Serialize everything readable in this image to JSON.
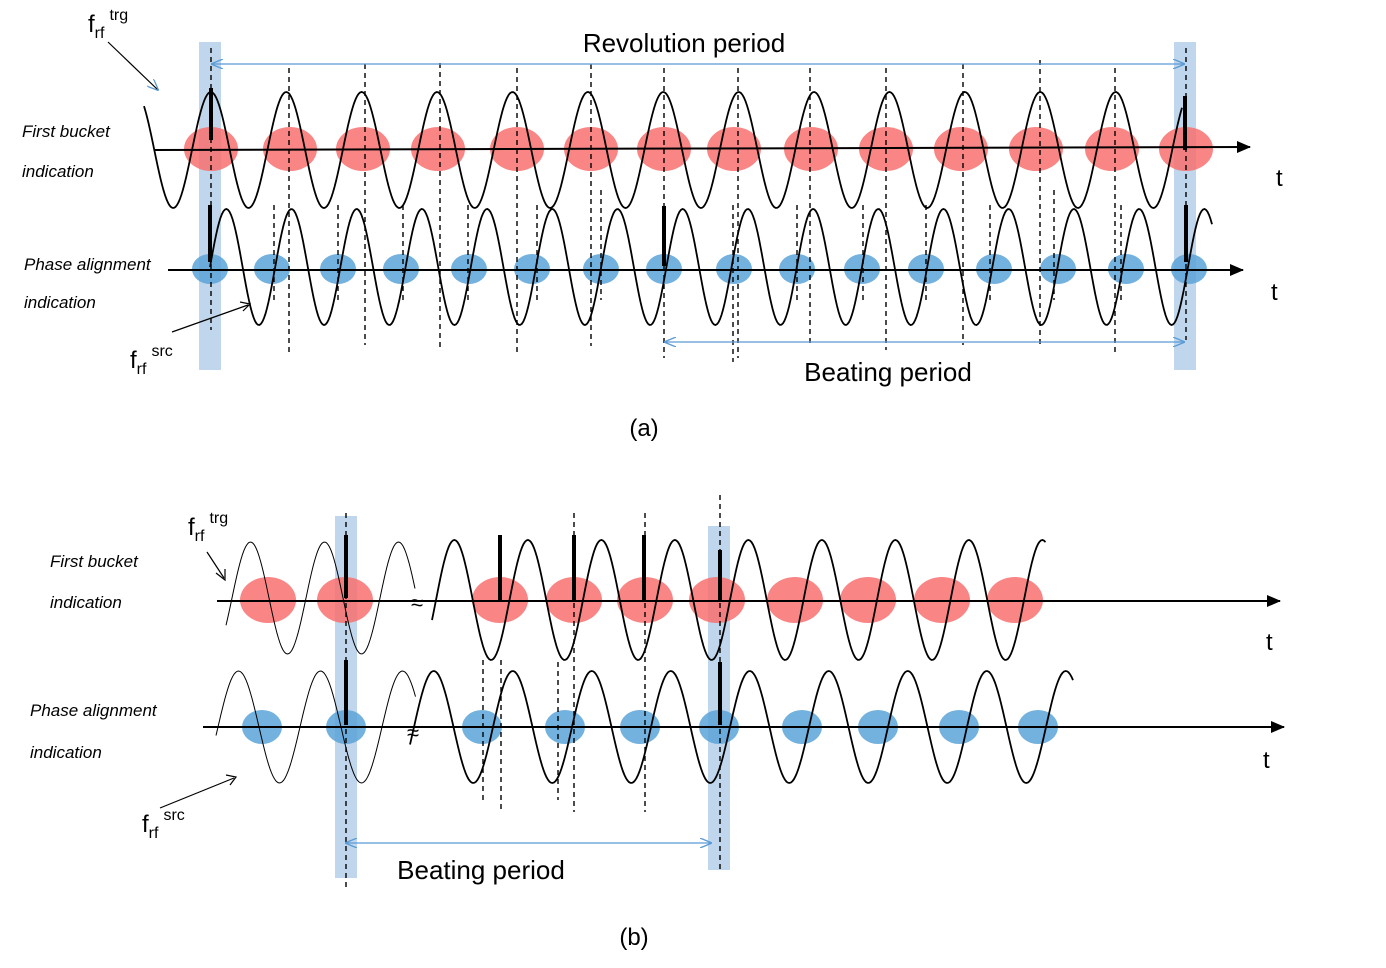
{
  "colors": {
    "red_bucket": "#f87070",
    "blue_bucket": "#5ba3d8",
    "highlight": "#a9c8e6",
    "arrow_blue": "#5b9bd5",
    "ink": "#000000"
  },
  "panel_a": {
    "caption": "(a)",
    "revolution_label": "Revolution period",
    "beating_label": "Beating period",
    "top_row_label_line1": "First bucket",
    "top_row_label_line2": "indication",
    "bottom_row_label_line1": "Phase alignment",
    "bottom_row_label_line2": "indication",
    "axis_label": "t",
    "trg_base": "f",
    "trg_sub": "rf",
    "trg_sup": "trg",
    "src_base": "f",
    "src_sub": "rf",
    "src_sup": "src"
  },
  "panel_b": {
    "caption": "(b)",
    "beating_label": "Beating period",
    "top_row_label_line1": "First bucket",
    "top_row_label_line2": "indication",
    "bottom_row_label_line1": "Phase alignment",
    "bottom_row_label_line2": "indication",
    "axis_label": "t",
    "trg_base": "f",
    "trg_sub": "rf",
    "trg_sup": "trg",
    "src_base": "f",
    "src_sub": "rf",
    "src_sup": "src",
    "break_mark": "≈"
  }
}
